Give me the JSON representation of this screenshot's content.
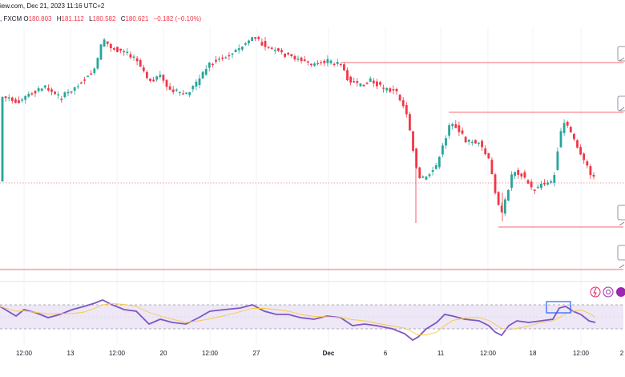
{
  "header": {
    "source_date": "iew.com, Dec 21, 2023 11:16 UTC+2",
    "symbol_feed": ", FXCM",
    "ohlc": [
      {
        "label": "O",
        "value": "180.803"
      },
      {
        "label": "H",
        "value": "181.112"
      },
      {
        "label": "L",
        "value": "180.582"
      },
      {
        "label": "C",
        "value": "180.621"
      },
      {
        "label": "",
        "value": "−0.182 (−0.10%)"
      }
    ]
  },
  "colors": {
    "up": "#26a69a",
    "down": "#f23645",
    "level_line": "#f23645",
    "rsi_line": "#7e57c2",
    "rsi_ma": "#f7c948",
    "rsi_band": "#ede7f6",
    "highlight_box": "#2962ff"
  },
  "x_axis_labels": [
    {
      "text": "12:00",
      "bold": false
    },
    {
      "text": "13",
      "bold": false
    },
    {
      "text": "12:00",
      "bold": false
    },
    {
      "text": "20",
      "bold": false
    },
    {
      "text": "12:00",
      "bold": false
    },
    {
      "text": "27",
      "bold": false
    },
    {
      "text": "Dec",
      "bold": true
    },
    {
      "text": "6",
      "bold": false
    },
    {
      "text": "11",
      "bold": false
    },
    {
      "text": "12:00",
      "bold": false
    },
    {
      "text": "18",
      "bold": false
    },
    {
      "text": "12:00",
      "bold": false
    },
    {
      "text": "2",
      "bold": false
    }
  ],
  "icons": [
    "flash-icon",
    "settings-circle-icon",
    "alert-bell-icon"
  ],
  "chart_data": {
    "type": "candlestick",
    "price_levels": [
      "upper-resistance",
      "middle-resistance",
      "lower-support",
      "bottom-support"
    ],
    "rsi_band": [
      "upper",
      "lower"
    ]
  }
}
